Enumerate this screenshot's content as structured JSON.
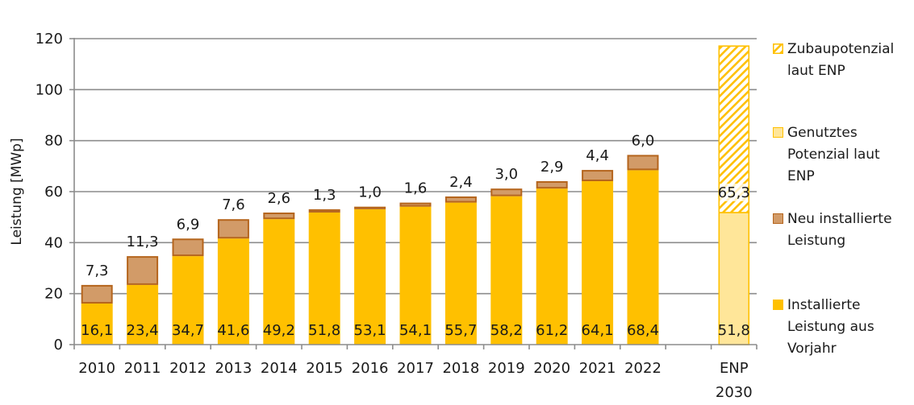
{
  "chart_data": {
    "type": "bar",
    "stacked": true,
    "title": "",
    "xlabel": "",
    "ylabel": "Leistung [MWp]",
    "ylim": [
      0,
      120
    ],
    "yticks": [
      0,
      20,
      40,
      60,
      80,
      100,
      120
    ],
    "ytick_labels": [
      "0",
      "20",
      "40",
      "60",
      "80",
      "100",
      "120"
    ],
    "grid": true,
    "legend_position": "right",
    "categories": [
      "2010",
      "2011",
      "2012",
      "2013",
      "2014",
      "2015",
      "2016",
      "2017",
      "2018",
      "2019",
      "2020",
      "2021",
      "2022",
      "",
      "ENP 2030"
    ],
    "category_label_lines": [
      [
        "2010"
      ],
      [
        "2011"
      ],
      [
        "2012"
      ],
      [
        "2013"
      ],
      [
        "2014"
      ],
      [
        "2015"
      ],
      [
        "2016"
      ],
      [
        "2017"
      ],
      [
        "2018"
      ],
      [
        "2019"
      ],
      [
        "2020"
      ],
      [
        "2021"
      ],
      [
        "2022"
      ],
      [
        ""
      ],
      [
        "ENP",
        "2030"
      ]
    ],
    "series": [
      {
        "name": "Installierte Leistung aus Vorjahr",
        "color": "#FFC000",
        "values": [
          16.1,
          23.4,
          34.7,
          41.6,
          49.2,
          51.8,
          53.1,
          54.1,
          55.7,
          58.2,
          61.2,
          64.1,
          68.4,
          null,
          null
        ],
        "labels": [
          "16,1",
          "23,4",
          "34,7",
          "41,6",
          "49,2",
          "51,8",
          "53,1",
          "54,1",
          "55,7",
          "58,2",
          "61,2",
          "64,1",
          "68,4",
          "",
          ""
        ]
      },
      {
        "name": "Neu installierte Leistung",
        "color": "#D29B68",
        "border": "#B5651D",
        "values": [
          7.3,
          11.3,
          6.9,
          7.6,
          2.6,
          1.3,
          1.0,
          1.6,
          2.4,
          3.0,
          2.9,
          4.4,
          6.0,
          null,
          null
        ],
        "labels": [
          "7,3",
          "11,3",
          "6,9",
          "7,6",
          "2,6",
          "1,3",
          "1,0",
          "1,6",
          "2,4",
          "3,0",
          "2,9",
          "4,4",
          "6,0",
          "",
          ""
        ]
      },
      {
        "name": "Genutztes Potenzial laut ENP",
        "color": "#FFE699",
        "border": "#FFC000",
        "values": [
          null,
          null,
          null,
          null,
          null,
          null,
          null,
          null,
          null,
          null,
          null,
          null,
          null,
          null,
          51.8
        ],
        "labels": [
          "",
          "",
          "",
          "",
          "",
          "",
          "",
          "",
          "",
          "",
          "",
          "",
          "",
          "",
          "51,8"
        ]
      },
      {
        "name": "Zubaupotenzial laut ENP",
        "color": "#FFC000",
        "pattern": "hatch",
        "values": [
          null,
          null,
          null,
          null,
          null,
          null,
          null,
          null,
          null,
          null,
          null,
          null,
          null,
          null,
          65.3
        ],
        "labels": [
          "",
          "",
          "",
          "",
          "",
          "",
          "",
          "",
          "",
          "",
          "",
          "",
          "",
          "",
          "65,3"
        ]
      }
    ],
    "legend": [
      {
        "label": "Zubaupotenzial\nlaut ENP",
        "swatch": "hatch",
        "color": "#FFC000"
      },
      {
        "label": "Genutztes\nPotenzial laut\nENP",
        "swatch": "light",
        "color": "#FFE699"
      },
      {
        "label": "Neu installierte\nLeistung",
        "swatch": "new",
        "color": "#D29B68"
      },
      {
        "label": "Installierte\nLeistung aus\nVorjahr",
        "swatch": "base",
        "color": "#FFC000"
      }
    ]
  }
}
